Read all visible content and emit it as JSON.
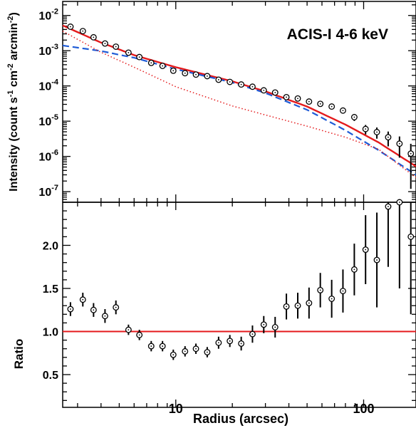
{
  "chart_data": [
    {
      "type": "scatter",
      "panel": "top",
      "annotation": "ACIS-I 4-6 keV",
      "xlabel": "Radius (arcsec)",
      "ylabel": "Intensity (count s^-1 cm^-2 arcmin^-2)",
      "ylabel_parts": [
        "Intensity (count s",
        "-1",
        " cm",
        "-2",
        " arcmin",
        "-2",
        ")"
      ],
      "xscale": "log",
      "yscale": "log",
      "xlim": [
        2.5,
        190
      ],
      "ylim": [
        5e-08,
        0.025
      ],
      "yticks": [
        {
          "value": 1e-07,
          "base": "10",
          "exp": "-7"
        },
        {
          "value": 1e-06,
          "base": "10",
          "exp": "-6"
        },
        {
          "value": 1e-05,
          "base": "10",
          "exp": "-5"
        },
        {
          "value": 0.0001,
          "base": "10",
          "exp": "-4"
        },
        {
          "value": 0.001,
          "base": "10",
          "exp": "-3"
        },
        {
          "value": 0.01,
          "base": "10",
          "exp": "-2"
        }
      ],
      "data_points": {
        "x": [
          2.75,
          3.2,
          3.65,
          4.2,
          4.8,
          5.6,
          6.4,
          7.4,
          8.5,
          9.7,
          11.2,
          12.8,
          14.7,
          16.9,
          19.4,
          22.3,
          25.6,
          29.4,
          33.8,
          38.8,
          44.6,
          51.2,
          58.8,
          67.6,
          77.6,
          89.2,
          102.4,
          117.6,
          135.1,
          155.2,
          178.3
        ],
        "y": [
          0.0048,
          0.0036,
          0.0024,
          0.0016,
          0.0013,
          0.00088,
          0.00066,
          0.00045,
          0.00037,
          0.00027,
          0.00023,
          0.00021,
          0.00019,
          0.00015,
          0.00013,
          0.00011,
          9.5e-05,
          7.5e-05,
          6.5e-05,
          4.8e-05,
          4.4e-05,
          3.6e-05,
          3.1e-05,
          2.6e-05,
          2e-05,
          1.3e-05,
          6e-06,
          4.9e-06,
          3.5e-06,
          2.3e-06,
          1.2e-06
        ],
        "yerr_rel": [
          0.06,
          0.06,
          0.06,
          0.06,
          0.06,
          0.06,
          0.06,
          0.06,
          0.06,
          0.07,
          0.07,
          0.07,
          0.07,
          0.08,
          0.08,
          0.08,
          0.09,
          0.09,
          0.1,
          0.1,
          0.11,
          0.12,
          0.13,
          0.15,
          0.18,
          0.22,
          0.3,
          0.35,
          0.45,
          0.6,
          0.9
        ]
      },
      "models": [
        {
          "style": "solid",
          "color": "#e41a1c",
          "x": [
            2.5,
            4,
            6,
            10,
            20,
            30,
            50,
            80,
            120,
            190
          ],
          "y": [
            0.0052,
            0.0017,
            0.00075,
            0.00034,
            0.000135,
            7e-05,
            2.6e-05,
            8e-06,
            2.5e-06,
            5.2e-07
          ]
        },
        {
          "style": "dashed",
          "color": "#1f5bd6",
          "x": [
            2.5,
            4,
            6,
            10,
            20,
            30,
            50,
            80,
            120,
            190
          ],
          "y": [
            0.0014,
            0.00098,
            0.00063,
            0.0003,
            0.000125,
            6.3e-05,
            2.1e-05,
            5.5e-06,
            1.5e-06,
            3e-07
          ]
        },
        {
          "style": "dotted",
          "color": "#e41a1c",
          "x": [
            2.5,
            4,
            6,
            10,
            20,
            30,
            50,
            80,
            120,
            190
          ],
          "y": [
            0.0036,
            0.0009,
            0.00034,
            9.5e-05,
            2.7e-05,
            1.5e-05,
            7.2e-06,
            3.5e-06,
            1.6e-06,
            2.5e-07
          ]
        }
      ]
    },
    {
      "type": "scatter",
      "panel": "bottom",
      "ylabel": "Ratio",
      "xlabel": "Radius (arcsec)",
      "xscale": "log",
      "xlim": [
        2.5,
        190
      ],
      "ylim": [
        0.12,
        2.5
      ],
      "yticks": [
        "0.5",
        "1.0",
        "1.5",
        "2.0"
      ],
      "xticks": [
        {
          "value": 10,
          "label": "10"
        },
        {
          "value": 100,
          "label": "100"
        }
      ],
      "reference_line": {
        "y": 1.0,
        "color": "#e41a1c"
      },
      "data_points": {
        "x": [
          2.75,
          3.2,
          3.65,
          4.2,
          4.8,
          5.6,
          6.4,
          7.4,
          8.5,
          9.7,
          11.2,
          12.8,
          14.7,
          16.9,
          19.4,
          22.3,
          25.6,
          29.4,
          33.8,
          38.8,
          44.6,
          51.2,
          58.8,
          67.6,
          77.6,
          89.2,
          102.4,
          117.6,
          135.1,
          155.2,
          178.3
        ],
        "y": [
          1.26,
          1.37,
          1.25,
          1.18,
          1.28,
          1.02,
          0.96,
          0.83,
          0.83,
          0.73,
          0.77,
          0.8,
          0.76,
          0.87,
          0.89,
          0.86,
          0.97,
          1.08,
          1.05,
          1.29,
          1.3,
          1.33,
          1.48,
          1.38,
          1.47,
          1.72,
          1.95,
          1.83,
          2.45,
          2.5,
          2.1
        ],
        "yerr": [
          0.08,
          0.08,
          0.08,
          0.08,
          0.08,
          0.06,
          0.06,
          0.06,
          0.06,
          0.06,
          0.06,
          0.06,
          0.06,
          0.07,
          0.07,
          0.08,
          0.1,
          0.1,
          0.12,
          0.15,
          0.15,
          0.18,
          0.2,
          0.22,
          0.25,
          0.3,
          0.4,
          0.55,
          0.7,
          1.0,
          0.9
        ]
      }
    }
  ]
}
